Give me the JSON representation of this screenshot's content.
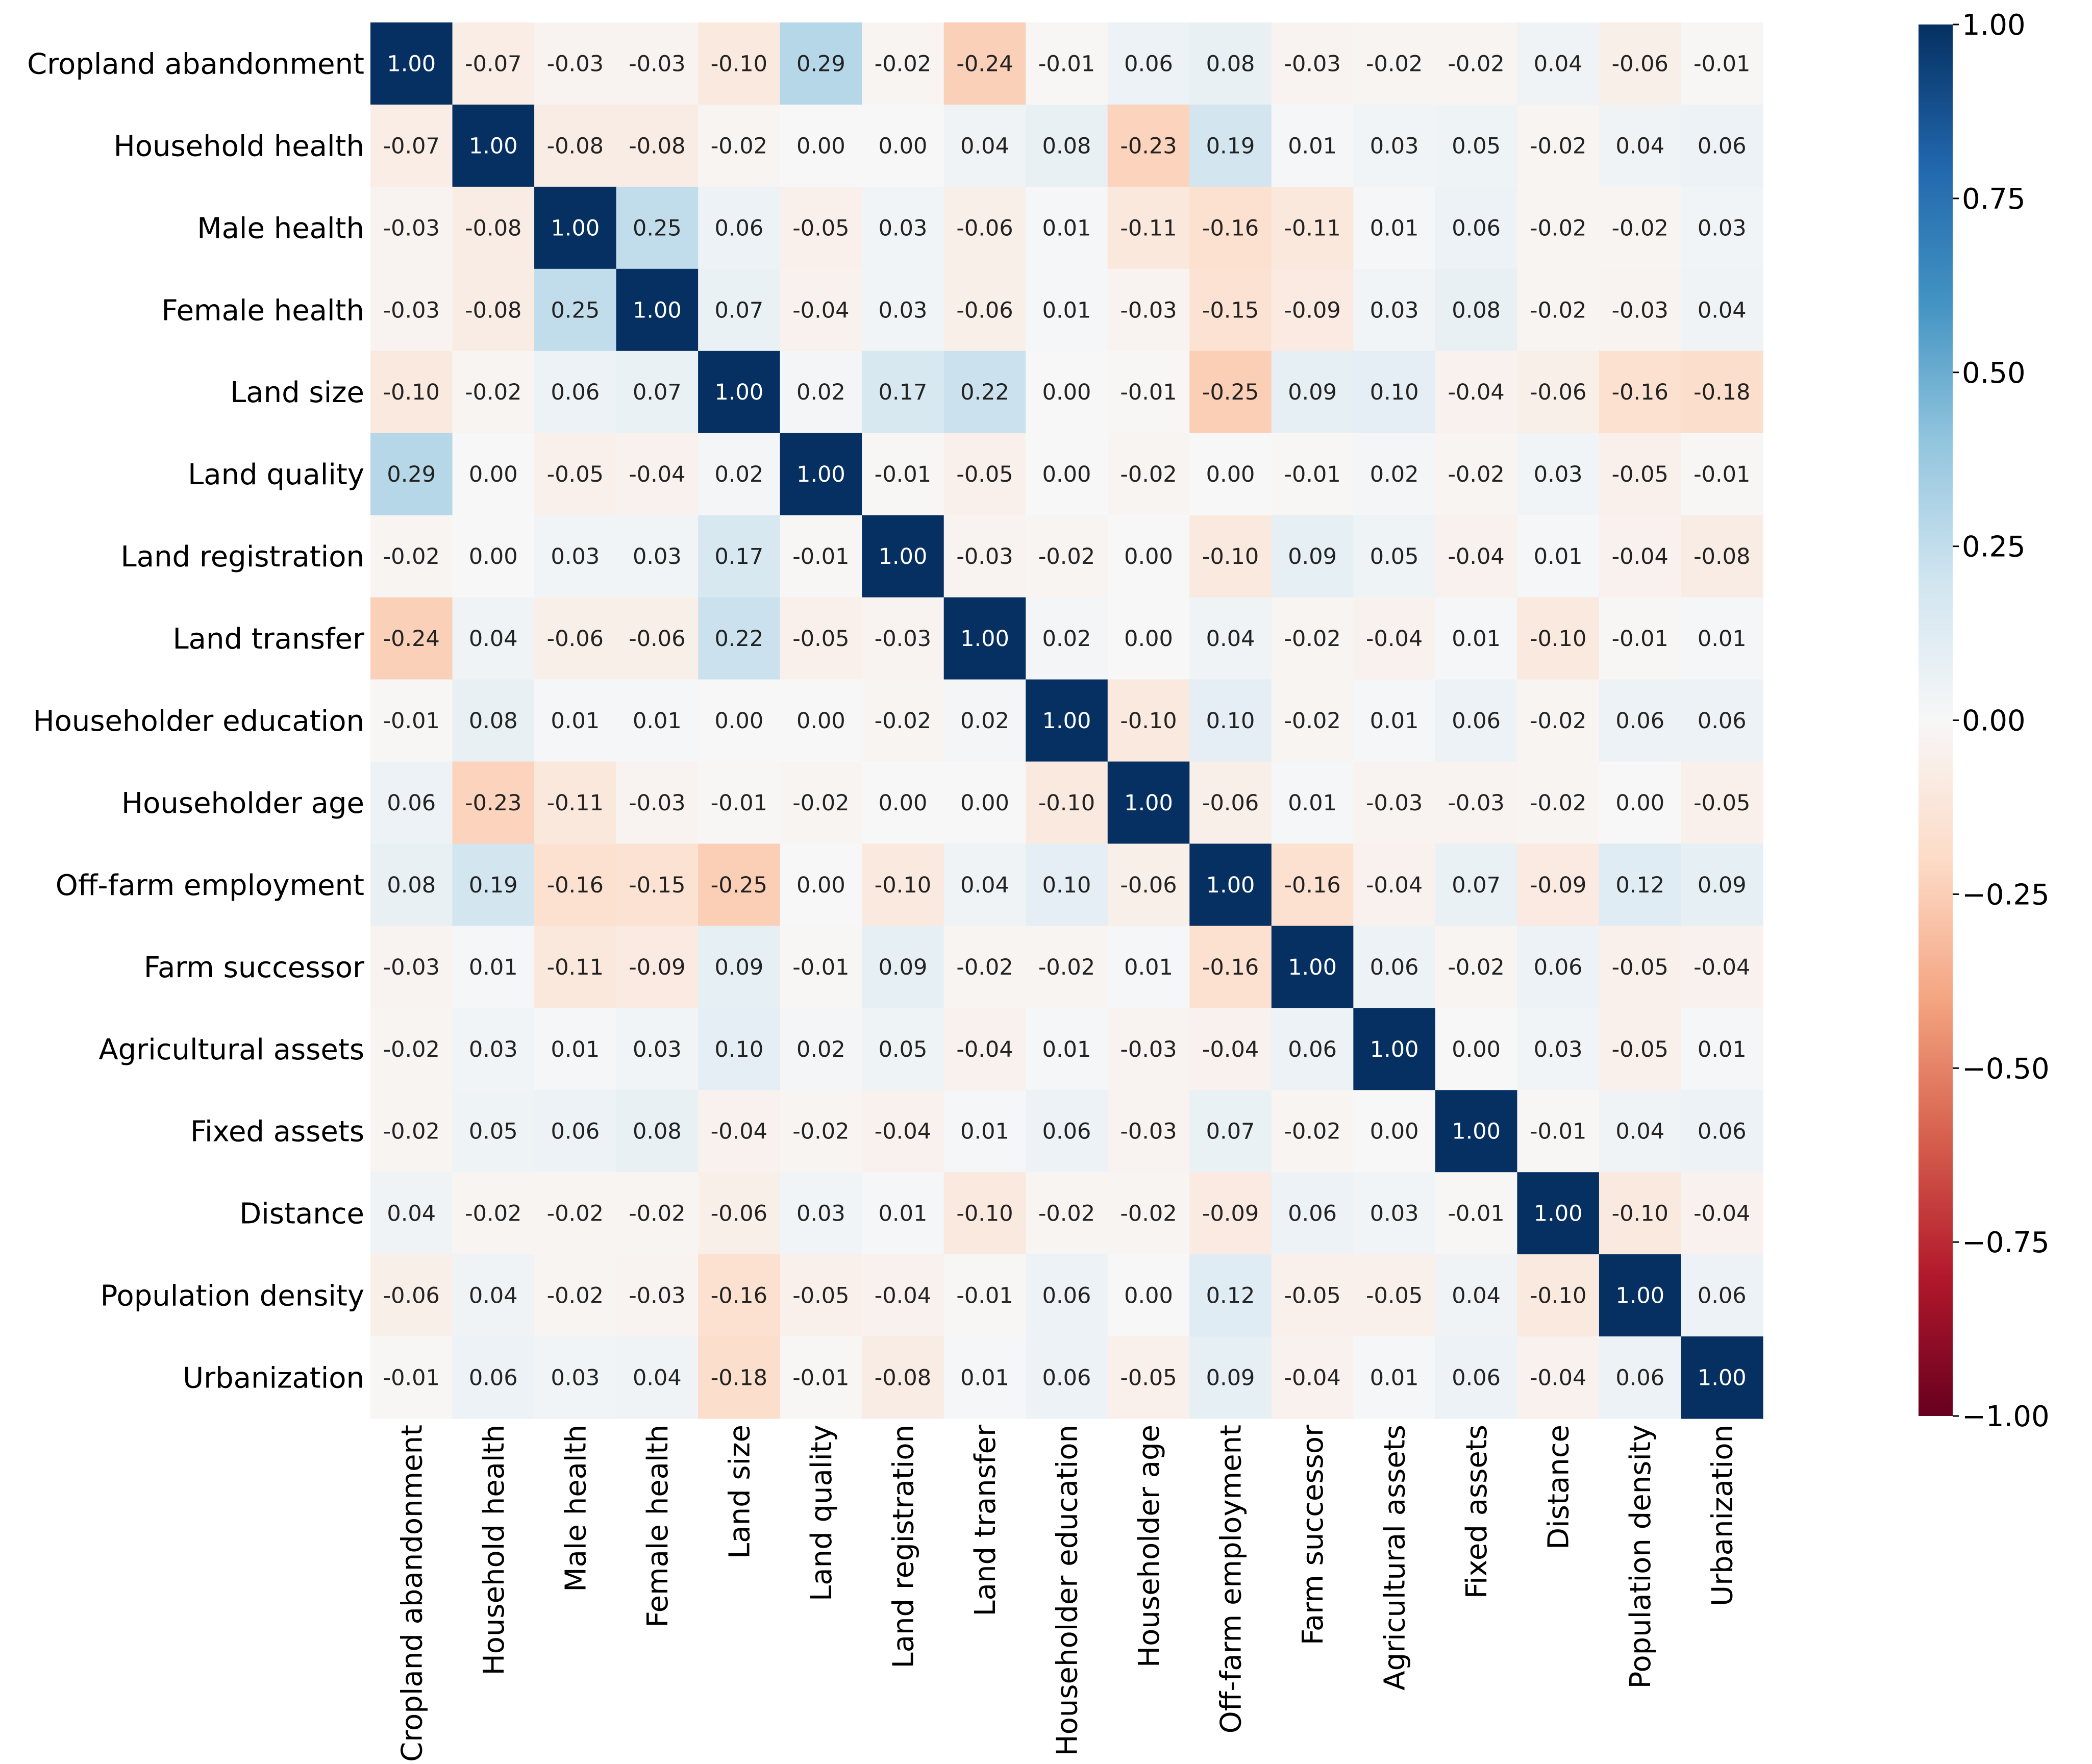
{
  "chart_data": {
    "type": "heatmap",
    "title": "",
    "labels": [
      "Cropland abandonment",
      "Household health",
      "Male health",
      "Female health",
      "Land size",
      "Land quality",
      "Land registration",
      "Land transfer",
      "Householder education",
      "Householder age",
      "Off-farm employment",
      "Farm successor",
      "Agricultural assets",
      "Fixed assets",
      "Distance",
      "Population density",
      "Urbanization"
    ],
    "values": [
      [
        1.0,
        -0.07,
        -0.03,
        -0.03,
        -0.1,
        0.29,
        -0.02,
        -0.24,
        -0.01,
        0.06,
        0.08,
        -0.03,
        -0.02,
        -0.02,
        0.04,
        -0.06,
        -0.01
      ],
      [
        -0.07,
        1.0,
        -0.08,
        -0.08,
        -0.02,
        -0.0,
        0.0,
        0.04,
        0.08,
        -0.23,
        0.19,
        0.01,
        0.03,
        0.05,
        -0.02,
        0.04,
        0.06
      ],
      [
        -0.03,
        -0.08,
        1.0,
        0.25,
        0.06,
        -0.05,
        0.03,
        -0.06,
        0.01,
        -0.11,
        -0.16,
        -0.11,
        0.01,
        0.06,
        -0.02,
        -0.02,
        0.03
      ],
      [
        -0.03,
        -0.08,
        0.25,
        1.0,
        0.07,
        -0.04,
        0.03,
        -0.06,
        0.01,
        -0.03,
        -0.15,
        -0.09,
        0.03,
        0.08,
        -0.02,
        -0.03,
        0.04
      ],
      [
        -0.1,
        -0.02,
        0.06,
        0.07,
        1.0,
        0.02,
        0.17,
        0.22,
        0.0,
        -0.01,
        -0.25,
        0.09,
        0.1,
        -0.04,
        -0.06,
        -0.16,
        -0.18
      ],
      [
        0.29,
        -0.0,
        -0.05,
        -0.04,
        0.02,
        1.0,
        -0.01,
        -0.05,
        0.0,
        -0.02,
        -0.0,
        -0.01,
        0.02,
        -0.02,
        0.03,
        -0.05,
        -0.01
      ],
      [
        -0.02,
        0.0,
        0.03,
        0.03,
        0.17,
        -0.01,
        1.0,
        -0.03,
        -0.02,
        -0.0,
        -0.1,
        0.09,
        0.05,
        -0.04,
        0.01,
        -0.04,
        -0.08
      ],
      [
        -0.24,
        0.04,
        -0.06,
        -0.06,
        0.22,
        -0.05,
        -0.03,
        1.0,
        0.02,
        -0.0,
        0.04,
        -0.02,
        -0.04,
        0.01,
        -0.1,
        -0.01,
        0.01
      ],
      [
        -0.01,
        0.08,
        0.01,
        0.01,
        0.0,
        0.0,
        -0.02,
        0.02,
        1.0,
        -0.1,
        0.1,
        -0.02,
        0.01,
        0.06,
        -0.02,
        0.06,
        0.06
      ],
      [
        0.06,
        -0.23,
        -0.11,
        -0.03,
        -0.01,
        -0.02,
        -0.0,
        -0.0,
        -0.1,
        1.0,
        -0.06,
        0.01,
        -0.03,
        -0.03,
        -0.02,
        0.0,
        -0.05
      ],
      [
        0.08,
        0.19,
        -0.16,
        -0.15,
        -0.25,
        -0.0,
        -0.1,
        0.04,
        0.1,
        -0.06,
        1.0,
        -0.16,
        -0.04,
        0.07,
        -0.09,
        0.12,
        0.09
      ],
      [
        -0.03,
        0.01,
        -0.11,
        -0.09,
        0.09,
        -0.01,
        0.09,
        -0.02,
        -0.02,
        0.01,
        -0.16,
        1.0,
        0.06,
        -0.02,
        0.06,
        -0.05,
        -0.04
      ],
      [
        -0.02,
        0.03,
        0.01,
        0.03,
        0.1,
        0.02,
        0.05,
        -0.04,
        0.01,
        -0.03,
        -0.04,
        0.06,
        1.0,
        -0.0,
        0.03,
        -0.05,
        0.01
      ],
      [
        -0.02,
        0.05,
        0.06,
        0.08,
        -0.04,
        -0.02,
        -0.04,
        0.01,
        0.06,
        -0.03,
        0.07,
        -0.02,
        -0.0,
        1.0,
        -0.01,
        0.04,
        0.06
      ],
      [
        0.04,
        -0.02,
        -0.02,
        -0.02,
        -0.06,
        0.03,
        0.01,
        -0.1,
        -0.02,
        -0.02,
        -0.09,
        0.06,
        0.03,
        -0.01,
        1.0,
        -0.1,
        -0.04
      ],
      [
        -0.06,
        0.04,
        -0.02,
        -0.03,
        -0.16,
        -0.05,
        -0.04,
        -0.01,
        0.06,
        0.0,
        0.12,
        -0.05,
        -0.05,
        0.04,
        -0.1,
        1.0,
        0.06
      ],
      [
        -0.01,
        0.06,
        0.03,
        0.04,
        -0.18,
        -0.01,
        -0.08,
        0.01,
        0.06,
        -0.05,
        0.09,
        -0.04,
        0.01,
        0.06,
        -0.04,
        0.06,
        1.0
      ]
    ],
    "value_format": "0.00",
    "vmin": -1.0,
    "vmax": 1.0,
    "colormap": "RdBu",
    "colorbar_ticks": [
      "1.00",
      "0.75",
      "0.50",
      "0.25",
      "0.00",
      "−0.25",
      "−0.50",
      "−0.75",
      "−1.00"
    ],
    "colorbar_tick_values": [
      1.0,
      0.75,
      0.5,
      0.25,
      0.0,
      -0.25,
      -0.5,
      -0.75,
      -1.0
    ],
    "legend": "right",
    "grid": false
  },
  "colors": {
    "text_dark": "#222222",
    "text_light": "#ffffff",
    "background": "#ffffff"
  }
}
